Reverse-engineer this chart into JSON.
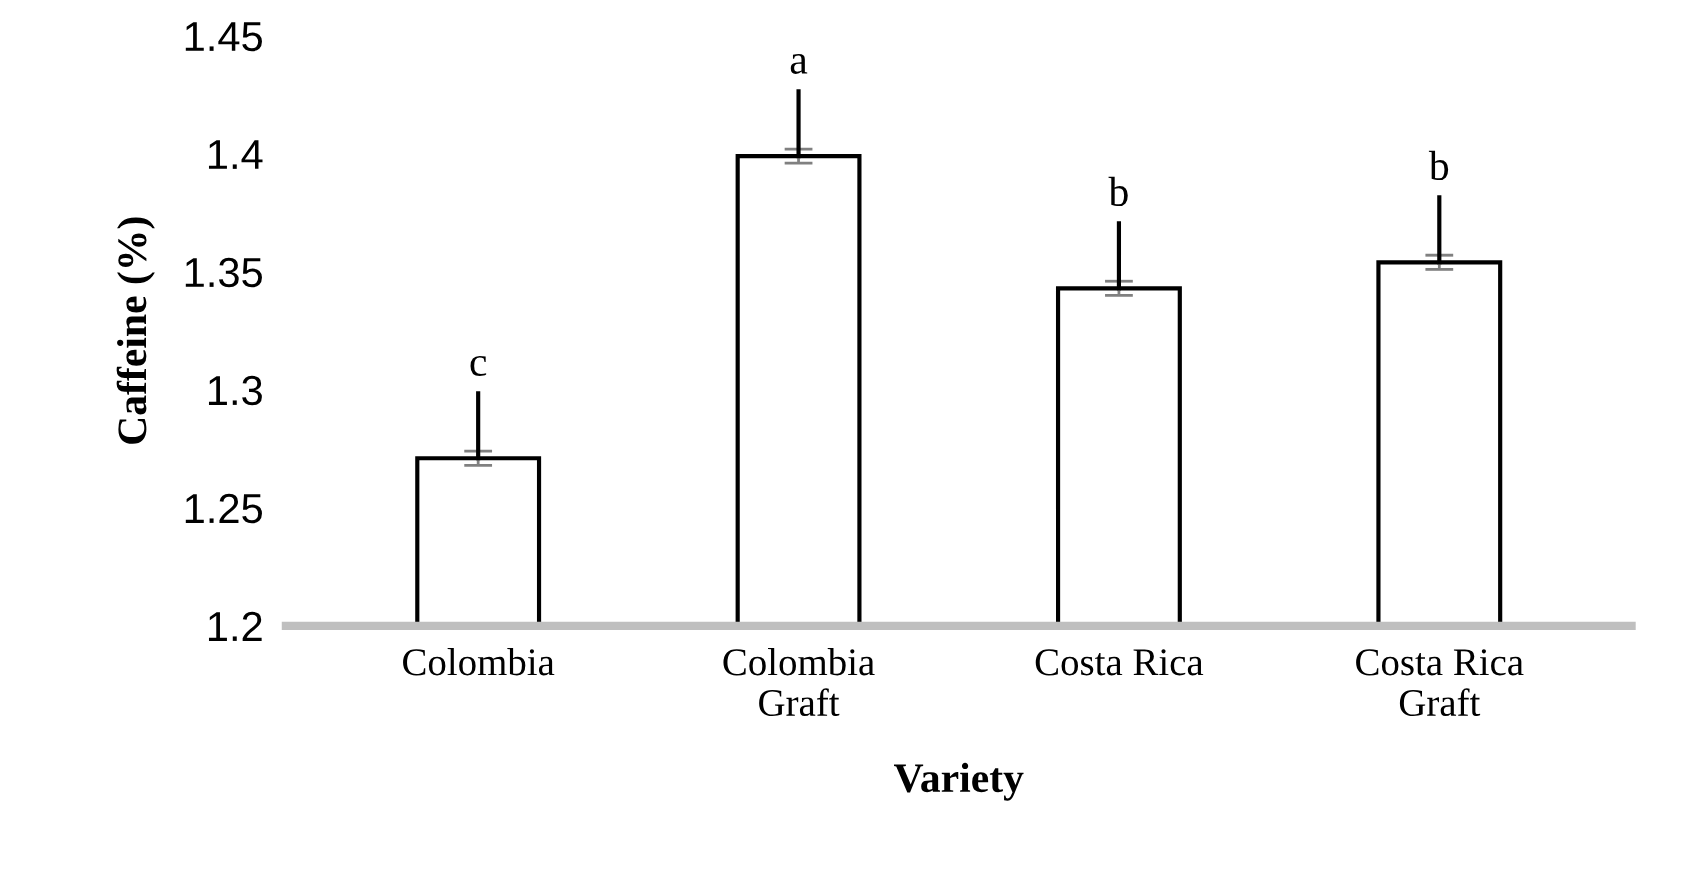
{
  "chart_data": {
    "type": "bar",
    "xlabel": "Variety",
    "ylabel": "Caffeine (%)",
    "categories": [
      "Colombia",
      "Colombia\nGraft",
      "Costa Rica",
      "Costa Rica\nGraft"
    ],
    "values": [
      1.271,
      1.399,
      1.343,
      1.354
    ],
    "errors": [
      0.003,
      0.003,
      0.003,
      0.003
    ],
    "color": "#ffffff",
    "ylim": [
      1.2,
      1.45
    ],
    "yticks": [
      1.2,
      1.25,
      1.3,
      1.35,
      1.4,
      1.45
    ],
    "grid": false,
    "annotations": [
      "c",
      "a",
      "b",
      "b"
    ]
  }
}
